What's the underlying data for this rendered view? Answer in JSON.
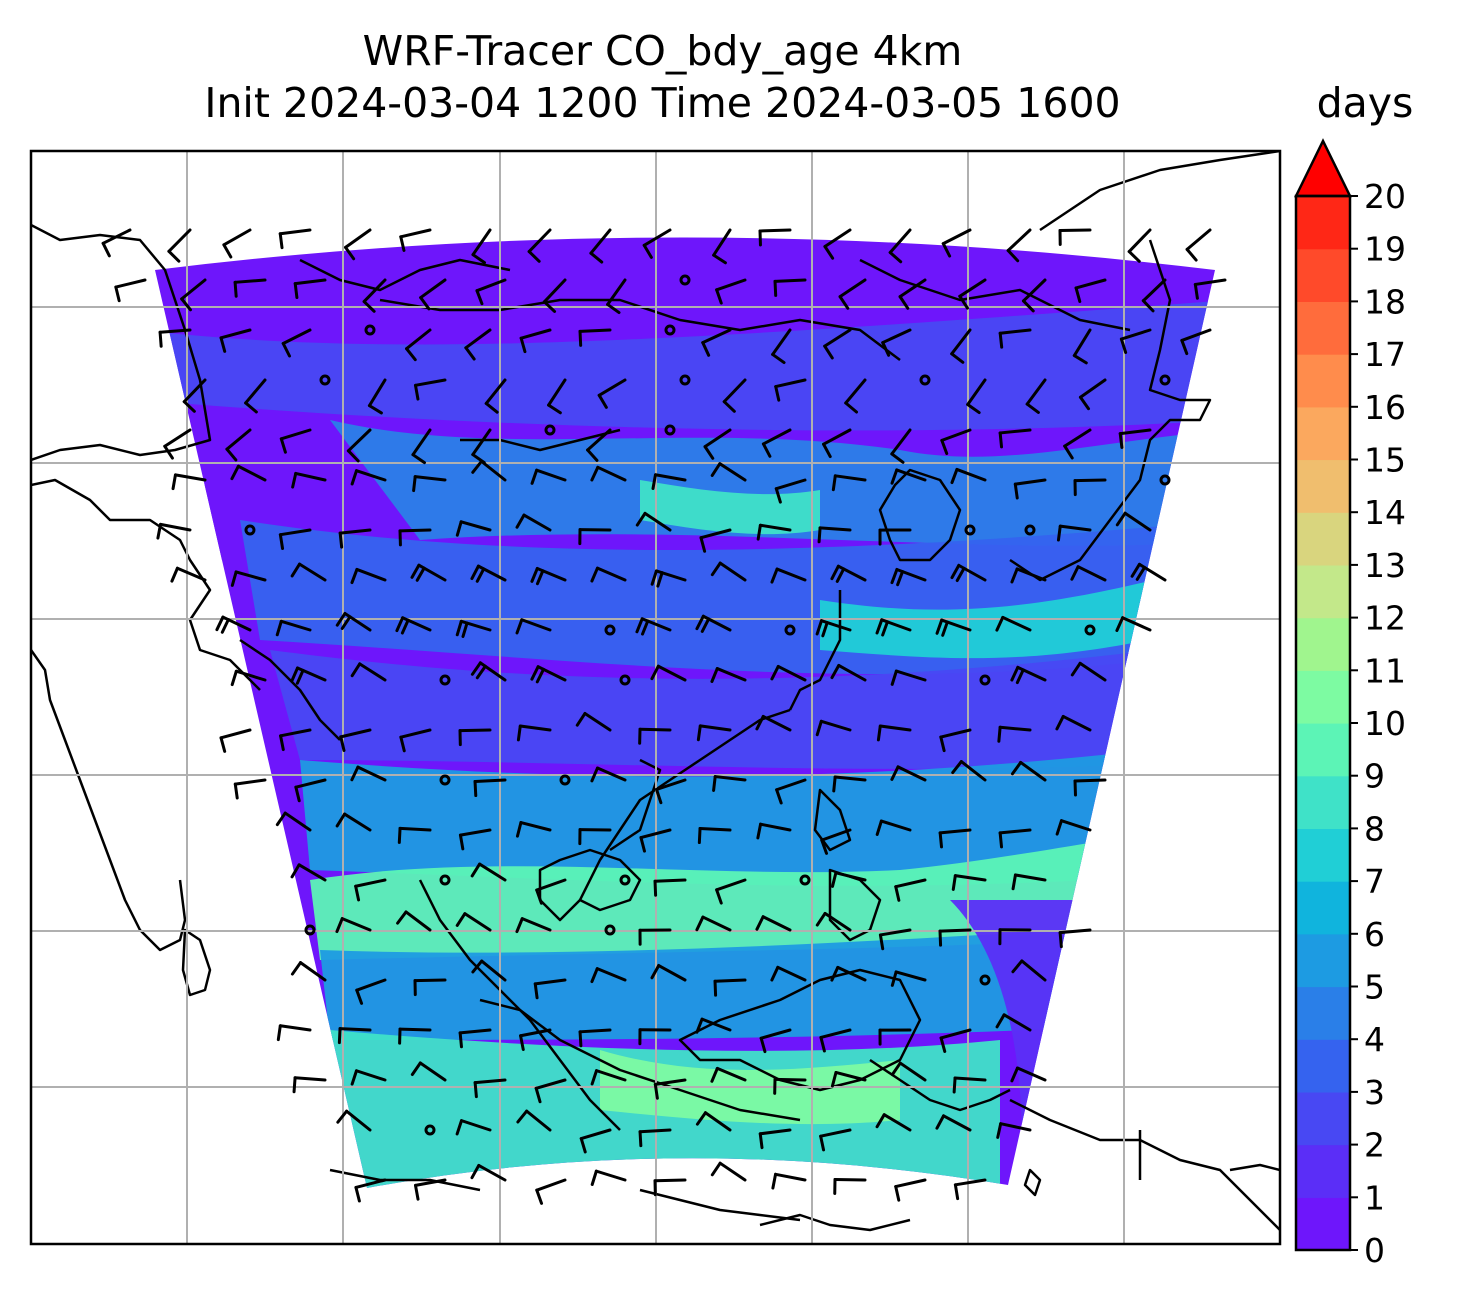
{
  "title": {
    "line1": "WRF-Tracer CO_bdy_age 4km",
    "line2": "Init 2024-03-04 1200 Time 2024-03-05 1600"
  },
  "colorbar": {
    "unit": "days",
    "min": 0,
    "max": 20,
    "extend": "max",
    "tick_labels": [
      "0",
      "1",
      "2",
      "3",
      "4",
      "5",
      "6",
      "7",
      "8",
      "9",
      "10",
      "11",
      "12",
      "13",
      "14",
      "15",
      "16",
      "17",
      "18",
      "19",
      "20"
    ],
    "colors": [
      "#6e16fb",
      "#5b2ef7",
      "#4848f3",
      "#3563ef",
      "#2a7fe8",
      "#1d9be2",
      "#10b4dd",
      "#20cfd6",
      "#3fe2c8",
      "#5cf4b6",
      "#7dfba2",
      "#a0f58e",
      "#c3e88a",
      "#d9d57e",
      "#f0be6e",
      "#fba85e",
      "#ff8c4c",
      "#ff6c3c",
      "#ff4a2a",
      "#ff2716"
    ],
    "extend_color": "#ff0000"
  },
  "map": {
    "field": "CO_bdy_age",
    "gridlines": true,
    "colormap": "rainbow",
    "overlay": "wind barbs"
  }
}
